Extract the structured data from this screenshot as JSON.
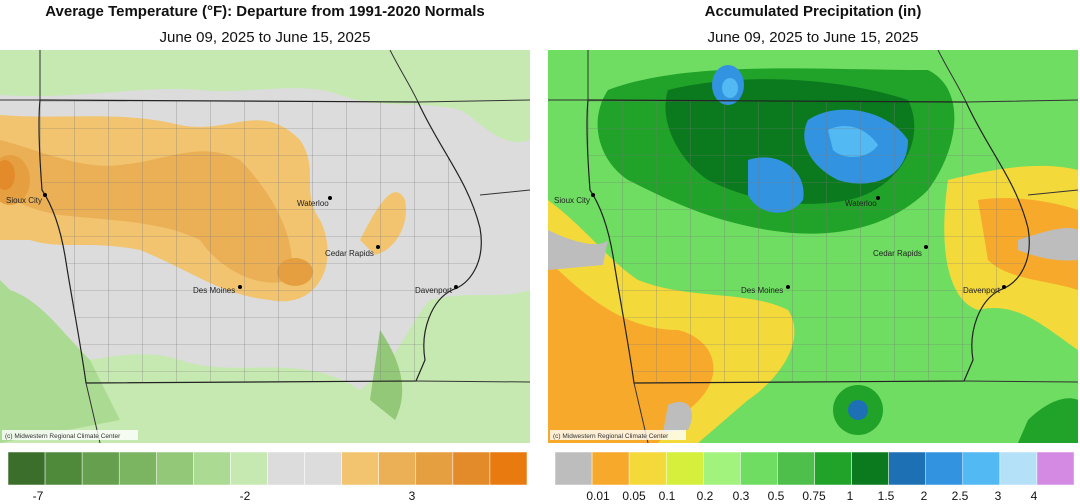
{
  "panels": [
    {
      "title": "Average Temperature (°F): Departure from 1991-2020 Normals",
      "subtitle": "June 09, 2025 to June 15, 2025",
      "cities": [
        "Sioux City",
        "Waterloo",
        "Cedar Rapids",
        "Des Moines",
        "Davenport"
      ],
      "credit": "(c) Midwestern Regional Climate Center",
      "legend": {
        "colors": [
          "#3b6e2b",
          "#4f8a3b",
          "#66a04e",
          "#7cb562",
          "#93c878",
          "#abda92",
          "#c6e9b2",
          "#dcdcdc",
          "#dcdcdc",
          "#f2c46f",
          "#ebb056",
          "#e59f40",
          "#e38b2a",
          "#e87a10"
        ],
        "labels": [
          "-7",
          "-2",
          "3"
        ]
      }
    },
    {
      "title": "Accumulated Precipitation (in)",
      "subtitle": "June 09, 2025 to June 15, 2025",
      "cities": [
        "Sioux City",
        "Waterloo",
        "Cedar Rapids",
        "Des Moines",
        "Davenport"
      ],
      "credit": "(c) Midwestern Regional Climate Center",
      "legend": {
        "colors": [
          "#bdbdbd",
          "#f7a92c",
          "#f3d93a",
          "#d6ee3c",
          "#a2f27e",
          "#6fdc62",
          "#4fbf4c",
          "#21a229",
          "#0b7a1f",
          "#1d70b4",
          "#3294e0",
          "#52b9f2",
          "#b4e1f8",
          "#d489e3"
        ],
        "labels": [
          "0.01",
          "0.05",
          "0.1",
          "0.2",
          "0.3",
          "0.5",
          "0.75",
          "1",
          "1.5",
          "2",
          "2.5",
          "3",
          "4"
        ]
      }
    }
  ]
}
